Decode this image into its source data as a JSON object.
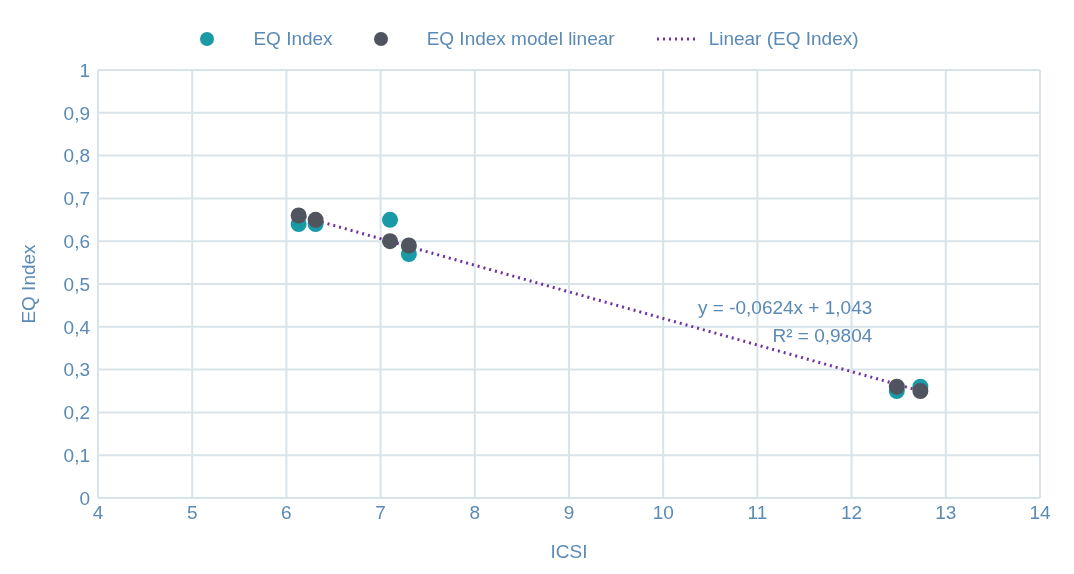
{
  "chart_data": {
    "type": "scatter",
    "xlabel": "ICSI",
    "ylabel": "EQ Index",
    "xlim": [
      4,
      14
    ],
    "xticks": [
      4,
      5,
      6,
      7,
      8,
      9,
      10,
      11,
      12,
      13,
      14
    ],
    "ylim": [
      0,
      1
    ],
    "yticks": [
      0,
      {
        "value": 0.1,
        "label": "0,1"
      },
      {
        "value": 0.2,
        "label": "0,2"
      },
      {
        "value": 0.3,
        "label": "0,3"
      },
      {
        "value": 0.4,
        "label": "0,4"
      },
      {
        "value": 0.5,
        "label": "0,5"
      },
      {
        "value": 0.6,
        "label": "0,6"
      },
      {
        "value": 0.7,
        "label": "0,7"
      },
      {
        "value": 0.8,
        "label": "0,8"
      },
      {
        "value": 0.9,
        "label": "0,9"
      },
      1
    ],
    "grid": true,
    "legend": "top",
    "series": [
      {
        "name": "EQ Index",
        "marker": "circle",
        "color": "#1a9aa6",
        "x": [
          6.13,
          6.31,
          7.1,
          7.3,
          12.48,
          12.73
        ],
        "values": [
          0.64,
          0.64,
          0.65,
          0.57,
          0.25,
          0.26
        ]
      },
      {
        "name": "EQ Index model linear",
        "marker": "circle",
        "color": "#50545f",
        "x": [
          6.13,
          6.31,
          7.1,
          7.3,
          12.48,
          12.73
        ],
        "values": [
          0.66,
          0.65,
          0.6,
          0.59,
          0.26,
          0.25
        ]
      },
      {
        "name": "Linear (EQ Index)",
        "type": "line",
        "color": "#7030a0",
        "line_style": "dotted",
        "x": [
          6.13,
          12.73
        ],
        "values": [
          0.66,
          0.25
        ]
      }
    ],
    "annotations": [
      "y = -0,0624x + 1,043",
      "R² = 0,9804"
    ]
  }
}
